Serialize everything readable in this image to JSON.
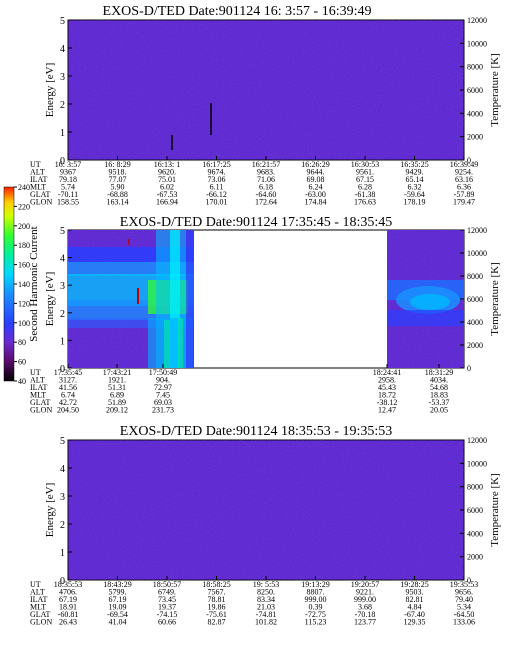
{
  "chart_data": [
    {
      "type": "heatmap",
      "title": "EXOS-D/TED   Date:901124  16: 3:57 - 16:39:49",
      "ylabel": "Energy [eV]",
      "y2label": "Temperature [K]",
      "ylim": [
        0,
        5
      ],
      "y2lim": [
        0,
        12000
      ],
      "yticks": [
        "0",
        "1",
        "2",
        "3",
        "4",
        "5"
      ],
      "y2ticks": [
        "0",
        "2000",
        "4000",
        "6000",
        "8000",
        "10000",
        "12000"
      ],
      "background": "#5a2ad0",
      "has_data_gap": false,
      "table_labels": [
        "UT",
        "ALT",
        "ILAT",
        "MLT",
        "GLAT",
        "GLON"
      ],
      "table_columns": [
        [
          "16: 3:57",
          "9367",
          "79.18",
          "5.74",
          "-70.11",
          "158.55"
        ],
        [
          "16: 8:29",
          "9518.",
          "77.07",
          "5.90",
          "-68.88",
          "163.14"
        ],
        [
          "16:13: 1",
          "9620.",
          "75.01",
          "6.02",
          "-67.53",
          "166.94"
        ],
        [
          "16:17:25",
          "9674.",
          "73.06",
          "6.11",
          "-66.12",
          "170.01"
        ],
        [
          "16:21:57",
          "9683.",
          "71.06",
          "6.18",
          "-64.60",
          "172.64"
        ],
        [
          "16:26:29",
          "9644.",
          "69.08",
          "6.24",
          "-63.00",
          "174.84"
        ],
        [
          "16:30:53",
          "9561.",
          "67.15",
          "6.28",
          "-61.38",
          "176.63"
        ],
        [
          "16:35:25",
          "9429.",
          "65.14",
          "6.32",
          "-59.64",
          "178.19"
        ],
        [
          "16:39:49",
          "9254.",
          "63.16",
          "6.36",
          "-57.89",
          "179.47"
        ]
      ]
    },
    {
      "type": "heatmap",
      "title": "EXOS-D/TED   Date:901124  17:35:45 - 18:35:45",
      "ylabel": "Energy [eV]",
      "y2label": "Temperature [K]",
      "ylim": [
        0,
        5
      ],
      "y2lim": [
        0,
        12000
      ],
      "yticks": [
        "0",
        "1",
        "2",
        "3",
        "4",
        "5"
      ],
      "y2ticks": [
        "0",
        "2000",
        "4000",
        "6000",
        "8000",
        "10000",
        "12000"
      ],
      "background": "#5a2ad0",
      "has_data_gap": true,
      "table_labels": [
        "UT",
        "ALT",
        "ILAT",
        "MLT",
        "GLAT",
        "GLON"
      ],
      "table_columns": [
        [
          "17:35:45",
          "3127.",
          "41.56",
          "6.74",
          "42.72",
          "204.50"
        ],
        [
          "17:43:21",
          "1921.",
          "51.31",
          "6.89",
          "51.89",
          "209.12"
        ],
        [
          "17:50:49",
          "904.",
          "72.97",
          "7.45",
          "69.03",
          "231.73"
        ],
        [
          "18:24:41",
          "2958.",
          "45.43",
          "18.72",
          "-38.12",
          "12.47"
        ],
        [
          "18:31:29",
          "4034.",
          "54.68",
          "18.83",
          "-53.37",
          "20.05"
        ]
      ]
    },
    {
      "type": "heatmap",
      "title": "EXOS-D/TED   Date:901124  18:35:53 - 19:35:53",
      "ylabel": "Energy [eV]",
      "y2label": "Temperature [K]",
      "ylim": [
        0,
        5
      ],
      "y2lim": [
        0,
        12000
      ],
      "yticks": [
        "0",
        "1",
        "2",
        "3",
        "4",
        "5"
      ],
      "y2ticks": [
        "0",
        "2000",
        "4000",
        "6000",
        "8000",
        "10000",
        "12000"
      ],
      "background": "#5a2ad0",
      "has_data_gap": false,
      "table_labels": [
        "UT",
        "ALT",
        "ILAT",
        "MLT",
        "GLAT",
        "GLON"
      ],
      "table_columns": [
        [
          "18:35:53",
          "4706.",
          "67.19",
          "18.91",
          "-60.81",
          "26.43"
        ],
        [
          "18:43:29",
          "5799.",
          "67.19",
          "19.09",
          "-69.54",
          "41.04"
        ],
        [
          "18:50:57",
          "6749.",
          "73.45",
          "19.37",
          "-74.15",
          "60.66"
        ],
        [
          "18:58:25",
          "7567.",
          "78.81",
          "19.86",
          "-75.61",
          "82.87"
        ],
        [
          "19: 5:53",
          "8250.",
          "83.34",
          "21.03",
          "-74.81",
          "101.82"
        ],
        [
          "19:13:29",
          "8807.",
          "999.00",
          "0.39",
          "-72.75",
          "115.23"
        ],
        [
          "19:20:57",
          "9221.",
          "999.00",
          "3.68",
          "-70.18",
          "123.77"
        ],
        [
          "19:28:25",
          "9503.",
          "82.81",
          "4.84",
          "-67.40",
          "129.35"
        ],
        [
          "19:35:53",
          "9656.",
          "79.40",
          "5.34",
          "-64.50",
          "133.06"
        ]
      ]
    }
  ],
  "colorbar": {
    "label": "Second Harmonic Current",
    "ticks": [
      "40",
      "60",
      "80",
      "100",
      "120",
      "140",
      "160",
      "180",
      "200",
      "220",
      "240"
    ],
    "colors": [
      "#000000",
      "#5a0a6a",
      "#6a2ad0",
      "#2a40ff",
      "#1a90ff",
      "#00d8ff",
      "#00f0a0",
      "#30ff30",
      "#d0ff00",
      "#ffd000",
      "#ff2000"
    ]
  }
}
